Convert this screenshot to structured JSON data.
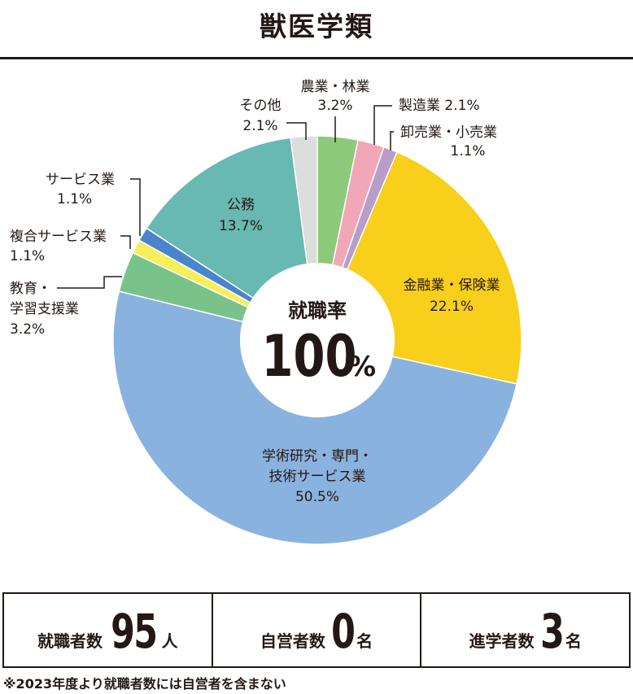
{
  "title": "獣医学類",
  "chart_data": {
    "type": "pie",
    "donut": true,
    "center_label": "就職率",
    "center_value": "100",
    "center_unit": "%",
    "slices": [
      {
        "label": "農業・林業",
        "value": 3.2,
        "display": "3.2%",
        "color": "#8dc97a"
      },
      {
        "label": "製造業",
        "value": 2.1,
        "display": "2.1%",
        "color": "#f1a7b8"
      },
      {
        "label": "卸売業・小売業",
        "value": 1.1,
        "display": "1.1%",
        "color": "#b89dcb"
      },
      {
        "label": "金融業・保険業",
        "value": 22.1,
        "display": "22.1%",
        "color": "#f8cf1a"
      },
      {
        "label": "学術研究・専門・技術サービス業",
        "value": 50.5,
        "display": "50.5%",
        "color": "#8ab2de"
      },
      {
        "label": "教育・学習支援業",
        "value": 3.2,
        "display": "3.2%",
        "color": "#79c38a"
      },
      {
        "label": "複合サービス業",
        "value": 1.1,
        "display": "1.1%",
        "color": "#f7ef5a"
      },
      {
        "label": "サービス業",
        "value": 1.1,
        "display": "1.1%",
        "color": "#4a84cc"
      },
      {
        "label": "公務",
        "value": 13.7,
        "display": "13.7%",
        "color": "#67b9b2"
      },
      {
        "label": "その他",
        "value": 2.1,
        "display": "2.1%",
        "color": "#dcdddd"
      }
    ]
  },
  "stats": [
    {
      "label": "就職者数",
      "value": "95",
      "unit": "人"
    },
    {
      "label": "自営者数",
      "value": "0",
      "unit": "名"
    },
    {
      "label": "進学者数",
      "value": "3",
      "unit": "名"
    }
  ],
  "note": "※2023年度より就職者数には自営者を含まない"
}
